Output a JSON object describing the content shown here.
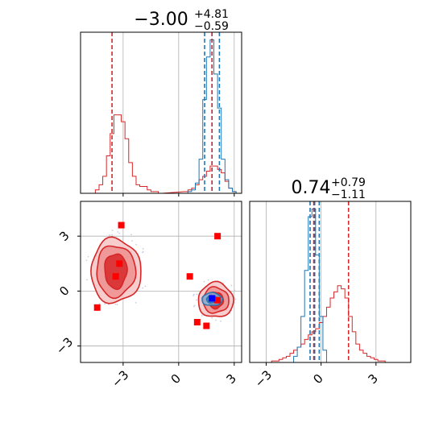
{
  "chart_data": {
    "type": "corner",
    "colors": {
      "red": "#d62728",
      "blue": "#1f77b4",
      "marker_red": "#ff0000",
      "marker_blue": "#0000ff",
      "grid": "#b0b0b0",
      "fill_red": "#f4a0a0",
      "fill_blue": "#6baed6"
    },
    "panels": {
      "hist_x": {
        "title_value": "−3.00",
        "title_plus": "+4.81",
        "title_minus": "−0.59",
        "xlim": [
          -5.3,
          3.4
        ],
        "vlines_red": [
          -3.6,
          1.8
        ],
        "vlines_blue": [
          1.4,
          1.8,
          2.2
        ],
        "series": [
          {
            "color": "red",
            "x": [
              -4.4,
              -4.2,
              -4.0,
              -3.8,
              -3.6,
              -3.4,
              -3.2,
              -3.0,
              -2.8,
              -2.6,
              -2.4,
              -2.2,
              -2.0,
              -1.8,
              -1.6,
              -1.4,
              -1.2,
              -1.0,
              0.4,
              0.6,
              0.8,
              1.0,
              1.2,
              1.4,
              1.6,
              1.8,
              2.0,
              2.2,
              2.4,
              2.6,
              2.8,
              3.0
            ],
            "values": [
              0.02,
              0.05,
              0.1,
              0.22,
              0.35,
              0.46,
              0.46,
              0.42,
              0.32,
              0.18,
              0.1,
              0.05,
              0.04,
              0.04,
              0.02,
              0.01,
              0.01,
              0.0,
              0.01,
              0.02,
              0.03,
              0.05,
              0.08,
              0.1,
              0.13,
              0.16,
              0.16,
              0.14,
              0.12,
              0.07,
              0.03,
              0.01
            ]
          },
          {
            "color": "blue",
            "x": [
              0.4,
              0.6,
              0.8,
              1.0,
              1.2,
              1.4,
              1.6,
              1.8,
              2.0,
              2.2,
              2.4,
              2.6,
              2.8,
              3.0,
              3.2
            ],
            "values": [
              0.0,
              0.01,
              0.02,
              0.06,
              0.2,
              0.55,
              0.8,
              0.9,
              0.7,
              0.5,
              0.2,
              0.08,
              0.03,
              0.01,
              0.0
            ]
          }
        ]
      },
      "hist_y": {
        "title_value": "0.74",
        "title_plus": "+0.79",
        "title_minus": "−1.11",
        "xlim": [
          -3.9,
          4.9
        ],
        "xticks": [
          -3,
          0,
          3
        ],
        "vlines_red": [
          -0.4,
          1.5
        ],
        "vlines_blue": [
          -0.6,
          -0.35,
          -0.1
        ],
        "series": [
          {
            "color": "red",
            "x": [
              -2.8,
              -2.6,
              -2.4,
              -2.2,
              -2.0,
              -1.8,
              -1.6,
              -1.4,
              -1.2,
              -1.0,
              -0.8,
              -0.6,
              -0.4,
              -0.2,
              0.0,
              0.2,
              0.4,
              0.6,
              0.8,
              1.0,
              1.2,
              1.4,
              1.6,
              1.8,
              2.0,
              2.2,
              2.4,
              2.6,
              2.8,
              3.0,
              3.2,
              3.4,
              3.6
            ],
            "values": [
              0.0,
              0.01,
              0.01,
              0.02,
              0.03,
              0.04,
              0.06,
              0.08,
              0.1,
              0.12,
              0.15,
              0.18,
              0.2,
              0.22,
              0.26,
              0.3,
              0.36,
              0.42,
              0.46,
              0.5,
              0.48,
              0.42,
              0.3,
              0.2,
              0.12,
              0.08,
              0.06,
              0.04,
              0.03,
              0.02,
              0.01,
              0.01,
              0.0
            ]
          },
          {
            "color": "blue",
            "x": [
              -1.6,
              -1.4,
              -1.2,
              -1.0,
              -0.8,
              -0.6,
              -0.4,
              -0.2,
              0.0,
              0.2,
              0.4
            ],
            "values": [
              0.0,
              0.04,
              0.1,
              0.3,
              0.6,
              0.95,
              1.0,
              0.7,
              0.3,
              0.08,
              0.0
            ]
          }
        ]
      },
      "scatter": {
        "xlim": [
          -5.3,
          3.4
        ],
        "ylim": [
          -3.9,
          4.9
        ],
        "xticks": [
          -3,
          0,
          3
        ],
        "yticks": [
          3,
          0,
          -3
        ],
        "red_markers": [
          [
            -3.1,
            3.6
          ],
          [
            -3.2,
            1.5
          ],
          [
            -3.4,
            0.8
          ],
          [
            -4.4,
            -0.9
          ],
          [
            0.6,
            0.8
          ],
          [
            2.1,
            3.0
          ],
          [
            1.0,
            -1.7
          ],
          [
            1.5,
            -1.9
          ],
          [
            2.1,
            -0.5
          ]
        ],
        "blue_markers": [
          [
            1.8,
            -0.4
          ]
        ],
        "red_contours": [
          {
            "cx": -3.4,
            "cy": 1.1,
            "rx": [
              0.6,
              1.05,
              1.35
            ],
            "ry": [
              0.95,
              1.4,
              1.75
            ]
          },
          {
            "cx": 2.0,
            "cy": -0.5,
            "rx": [
              0.4,
              0.7,
              0.95
            ],
            "ry": [
              0.45,
              0.7,
              0.95
            ]
          }
        ],
        "blue_contour": {
          "cx": 1.8,
          "cy": -0.45,
          "rx": [
            0.3,
            0.55
          ],
          "ry": [
            0.2,
            0.35
          ]
        }
      }
    }
  }
}
